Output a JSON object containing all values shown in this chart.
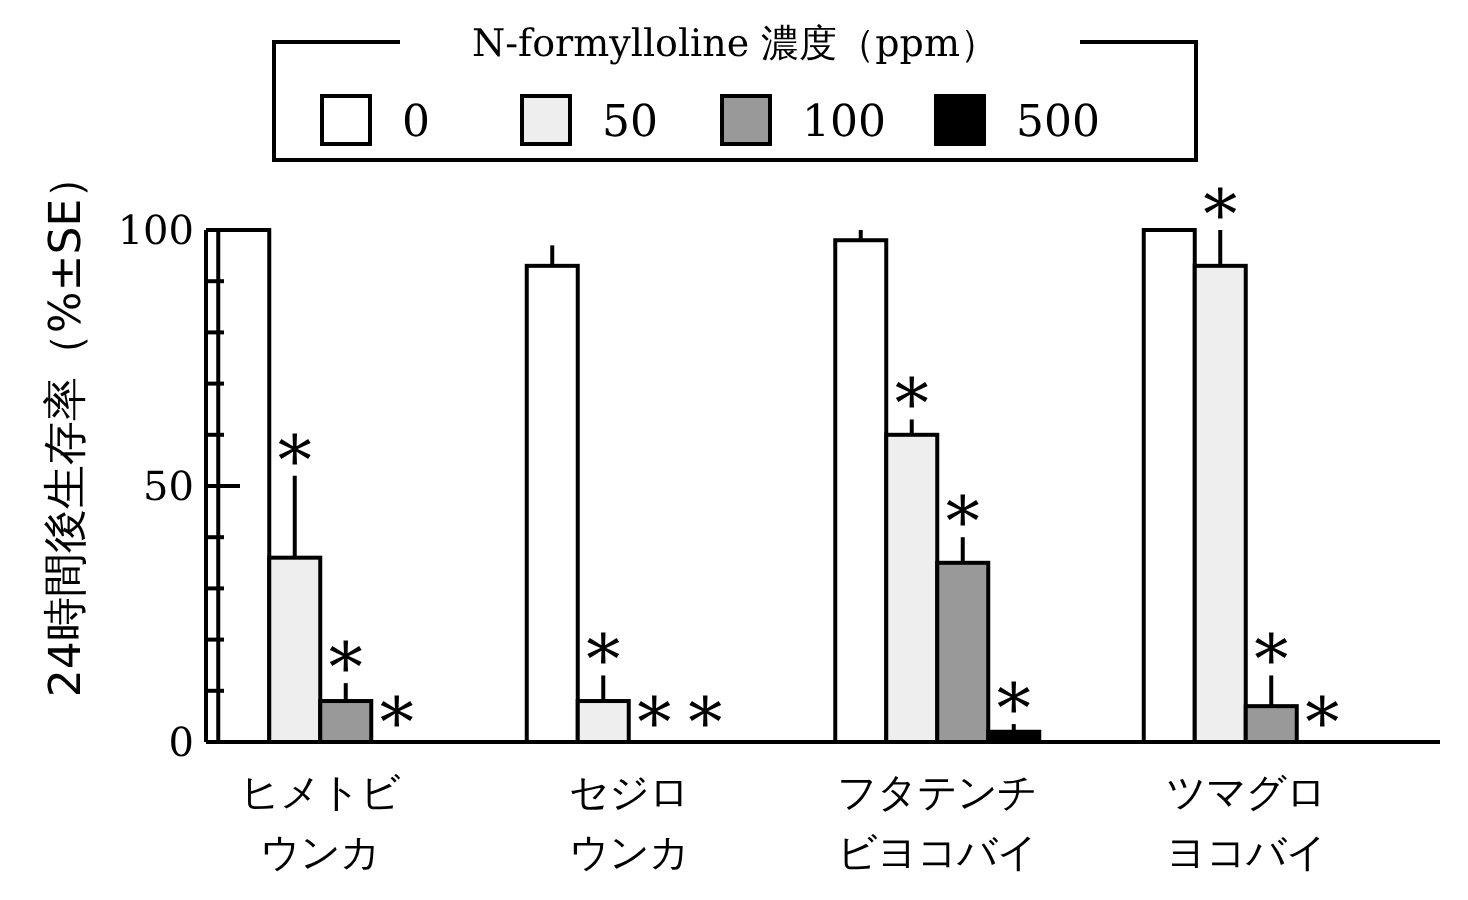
{
  "chart_data": {
    "type": "bar",
    "ylabel": "24時間後生存率（%±SE）",
    "legend_title": "N-formylloline 濃度（ppm）",
    "legend": "top",
    "categories": [
      "ヒメトビウンカ",
      "セジロウンカ",
      "フタテンチビヨコバイ",
      "ツマグロヨコバイ"
    ],
    "series": [
      {
        "name": "0",
        "color": "#ffffff",
        "values": [
          100,
          93,
          98,
          100
        ],
        "errors": [
          null,
          4,
          2,
          null
        ]
      },
      {
        "name": "50",
        "color": "#eeeeee",
        "values": [
          36,
          8,
          60,
          93
        ],
        "errors": [
          16,
          5,
          3,
          7
        ],
        "value_labels": [
          "*",
          "*",
          "*",
          "*"
        ]
      },
      {
        "name": "100",
        "color": "#999999",
        "values": [
          8,
          0,
          35,
          7
        ],
        "errors": [
          3.5,
          null,
          5,
          6
        ],
        "value_labels": [
          "*",
          "*",
          "*",
          "*"
        ]
      },
      {
        "name": "500",
        "color": "#000000",
        "values": [
          0,
          0,
          2,
          0
        ],
        "errors": [
          null,
          null,
          1.5,
          null
        ],
        "value_labels": [
          "*",
          "*",
          "*",
          "*"
        ]
      }
    ],
    "ylim": [
      0,
      100
    ],
    "yticks": [
      0,
      {
        "value": 10,
        "label": null
      },
      {
        "value": 20,
        "label": null
      },
      {
        "value": 30,
        "label": null
      },
      {
        "value": 40,
        "label": null
      },
      50,
      {
        "value": 60,
        "label": null
      },
      {
        "value": 70,
        "label": null
      },
      {
        "value": 80,
        "label": null
      },
      {
        "value": 90,
        "label": null
      },
      100
    ],
    "grid": false
  }
}
